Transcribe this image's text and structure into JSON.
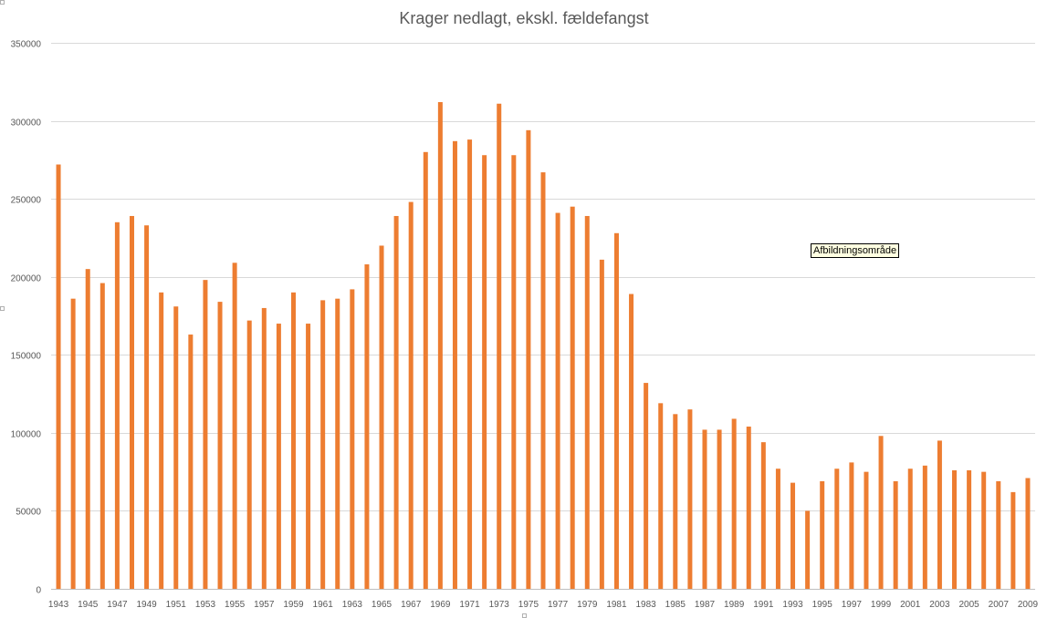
{
  "chart_data": {
    "type": "bar",
    "title": "Krager nedlagt, ekskl. fældefangst",
    "xlabel": "",
    "ylabel": "",
    "ylim": [
      0,
      350000
    ],
    "yticks": [
      0,
      50000,
      100000,
      150000,
      200000,
      250000,
      300000,
      350000
    ],
    "ytick_labels": [
      "0",
      "50000",
      "100000",
      "150000",
      "200000",
      "250000",
      "300000",
      "350000"
    ],
    "grid": true,
    "legend": "none",
    "bar_color": "#ed7d31",
    "x_tick_every": 2,
    "categories": [
      "1943",
      "1944",
      "1945",
      "1946",
      "1947",
      "1948",
      "1949",
      "1950",
      "1951",
      "1952",
      "1953",
      "1954",
      "1955",
      "1956",
      "1957",
      "1958",
      "1959",
      "1960",
      "1961",
      "1962",
      "1963",
      "1964",
      "1965",
      "1966",
      "1967",
      "1968",
      "1969",
      "1970",
      "1971",
      "1972",
      "1973",
      "1974",
      "1975",
      "1976",
      "1977",
      "1978",
      "1979",
      "1980",
      "1981",
      "1982",
      "1983",
      "1984",
      "1985",
      "1986",
      "1987",
      "1988",
      "1989",
      "1990",
      "1991",
      "1992",
      "1993",
      "1994",
      "1995",
      "1996",
      "1997",
      "1998",
      "1999",
      "2000",
      "2001",
      "2002",
      "2003",
      "2004",
      "2005",
      "2006",
      "2007",
      "2008",
      "2009"
    ],
    "values": [
      272000,
      186000,
      205000,
      196000,
      235000,
      239000,
      233000,
      190000,
      181000,
      163000,
      198000,
      184000,
      209000,
      172000,
      180000,
      170000,
      190000,
      170000,
      185000,
      186000,
      192000,
      208000,
      220000,
      239000,
      248000,
      280000,
      312000,
      287000,
      288000,
      278000,
      311000,
      278000,
      294000,
      267000,
      241000,
      245000,
      239000,
      211000,
      228000,
      189000,
      132000,
      119000,
      112000,
      115000,
      102000,
      102000,
      109000,
      104000,
      94000,
      77000,
      68000,
      50000,
      69000,
      77000,
      81000,
      75000,
      98000,
      69000,
      77000,
      79000,
      95000,
      76000,
      76000,
      75000,
      69000,
      62000,
      71000
    ]
  },
  "overlay": {
    "tooltip_text": "Afbildningsområde"
  }
}
